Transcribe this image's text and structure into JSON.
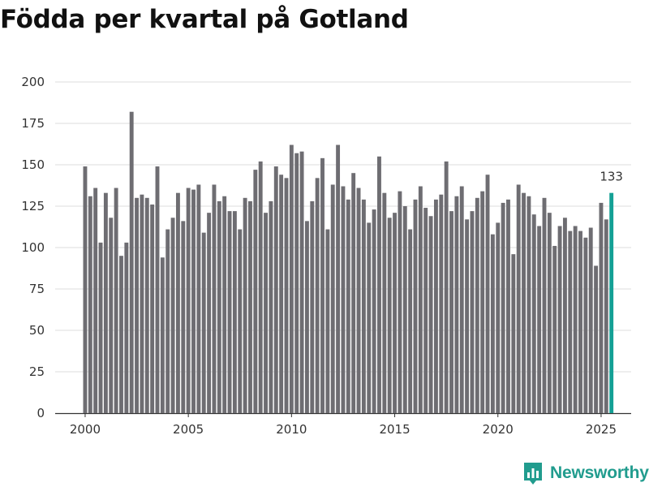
{
  "title": "Födda per kvartal på Gotland",
  "brand": {
    "name": "Newsworthy",
    "icon": "newsworthy-logo-icon",
    "color": "#219c8e"
  },
  "colors": {
    "bar": "#6e6d72",
    "highlight": "#14a095",
    "grid": "#dddddd",
    "axis": "#333333",
    "text": "#333333"
  },
  "chart_data": {
    "type": "bar",
    "title": "Födda per kvartal på Gotland",
    "xlabel": "",
    "ylabel": "",
    "ylim": [
      0,
      200
    ],
    "yticks": [
      0,
      25,
      50,
      75,
      100,
      125,
      150,
      175,
      200
    ],
    "xticks": [
      2000,
      2005,
      2010,
      2015,
      2020,
      2025
    ],
    "grid": true,
    "start": {
      "year": 2000,
      "quarter": 1
    },
    "values": [
      149,
      131,
      136,
      103,
      133,
      118,
      136,
      95,
      103,
      182,
      130,
      132,
      130,
      126,
      149,
      94,
      111,
      118,
      133,
      116,
      136,
      135,
      138,
      109,
      121,
      138,
      128,
      131,
      122,
      122,
      111,
      130,
      128,
      147,
      152,
      121,
      128,
      149,
      144,
      142,
      162,
      157,
      158,
      116,
      128,
      142,
      154,
      111,
      138,
      162,
      137,
      129,
      145,
      136,
      129,
      115,
      123,
      155,
      133,
      118,
      121,
      134,
      125,
      111,
      129,
      137,
      124,
      119,
      129,
      132,
      152,
      122,
      131,
      137,
      117,
      122,
      130,
      134,
      144,
      108,
      115,
      127,
      129,
      96,
      138,
      133,
      131,
      120,
      113,
      130,
      121,
      101,
      113,
      118,
      110,
      113,
      110,
      106,
      112,
      89,
      127,
      117,
      133
    ],
    "highlight": {
      "index": 102,
      "label": "133"
    }
  }
}
